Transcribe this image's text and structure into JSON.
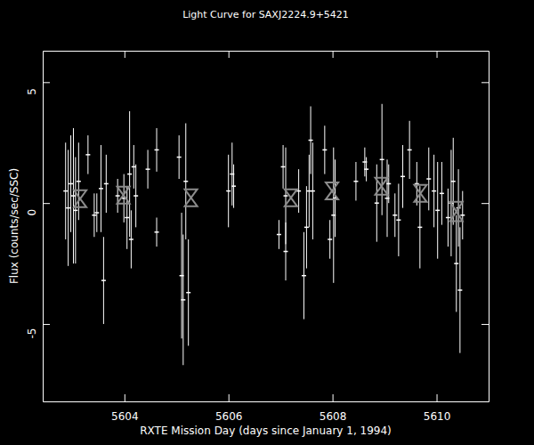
{
  "chart_data": {
    "type": "scatter",
    "title": "Light Curve for SAXJ2224.9+5421",
    "x_label": "RXTE Mission Day (days since January 1, 1994)",
    "y_label": "Flux (counts/sec/SSC)",
    "xlim": [
      5602.43,
      5611.0
    ],
    "xticks": [
      5604,
      5606,
      5608,
      5610
    ],
    "ylim": [
      -8.2,
      6.3
    ],
    "yticks": [
      -5,
      0,
      5
    ],
    "series": [
      {
        "color": "#ffffff",
        "marker": "dash",
        "x": [
          5602.87,
          5602.92,
          5602.97,
          5603.02,
          5603.06,
          5603.12,
          5603.3,
          5603.42,
          5603.47,
          5603.55,
          5603.6,
          5603.65,
          5603.87,
          5603.99,
          5604.05,
          5604.1,
          5604.13,
          5604.18,
          5604.22,
          5604.45,
          5604.62,
          5604.62,
          5605.05,
          5605.1,
          5605.13,
          5605.18,
          5605.23,
          5606.0,
          5606.07,
          5606.1,
          5606.97,
          5607.05,
          5607.1,
          5607.1,
          5607.35,
          5607.45,
          5607.5,
          5607.55,
          5607.58,
          5607.62,
          5607.85,
          5607.95,
          5608.02,
          5608.05,
          5608.45,
          5608.62,
          5608.65,
          5608.85,
          5608.95,
          5609.05,
          5609.08,
          5609.2,
          5609.27,
          5609.35,
          5609.48,
          5609.62,
          5609.68,
          5609.85,
          5609.95,
          5610.02,
          5610.1,
          5610.22,
          5610.28,
          5610.32,
          5610.38,
          5610.42,
          5610.45,
          5610.5
        ],
        "values": [
          0.5,
          -0.2,
          0.8,
          0.3,
          -0.3,
          0.9,
          2.0,
          -0.5,
          -0.4,
          0.6,
          -3.2,
          0.8,
          0.3,
          0.2,
          -0.6,
          1.2,
          -1.5,
          1.5,
          0.3,
          1.4,
          2.2,
          -1.2,
          1.9,
          -3.0,
          -4.0,
          0.9,
          -3.7,
          0.5,
          1.2,
          0.7,
          -1.3,
          1.5,
          0.3,
          -2.0,
          0.5,
          -3.0,
          -1.0,
          0.5,
          2.6,
          0.5,
          2.2,
          -1.5,
          -0.5,
          0.2,
          0.9,
          1.7,
          1.4,
          0.0,
          1.8,
          0.2,
          0.8,
          -0.5,
          -0.7,
          1.1,
          2.2,
          0.8,
          -1.0,
          1.0,
          0.5,
          -0.3,
          0.4,
          -0.6,
          0.0,
          0.9,
          -2.5,
          -0.2,
          -3.6,
          -0.5
        ],
        "errors": [
          2.0,
          2.4,
          2.0,
          2.8,
          2.2,
          1.6,
          0.8,
          0.9,
          0.8,
          1.8,
          1.8,
          1.2,
          0.7,
          1.0,
          1.3,
          2.6,
          1.2,
          0.9,
          1.3,
          0.8,
          0.9,
          0.6,
          0.9,
          2.6,
          2.7,
          2.4,
          2.2,
          1.5,
          1.3,
          0.9,
          0.6,
          0.9,
          2.0,
          1.2,
          0.9,
          1.8,
          1.7,
          1.5,
          1.4,
          2.0,
          1.0,
          0.8,
          2.8,
          1.6,
          0.8,
          0.6,
          0.5,
          1.6,
          2.3,
          1.6,
          0.8,
          0.9,
          1.5,
          1.3,
          1.2,
          0.9,
          1.7,
          1.3,
          1.5,
          2.0,
          1.3,
          1.2,
          2.2,
          1.8,
          2.0,
          1.6,
          2.6,
          1.0
        ]
      },
      {
        "color": "#8c8c8c",
        "marker": "hourglass",
        "x": [
          5603.15,
          5603.98,
          5605.28,
          5607.2,
          5607.99,
          5608.94,
          5609.69,
          5610.38
        ],
        "values": [
          0.18,
          0.33,
          0.22,
          0.22,
          0.5,
          0.7,
          0.4,
          -0.35
        ],
        "errors": [
          0.35,
          0.35,
          0.35,
          0.35,
          0.35,
          0.35,
          0.35,
          0.4
        ]
      }
    ]
  }
}
